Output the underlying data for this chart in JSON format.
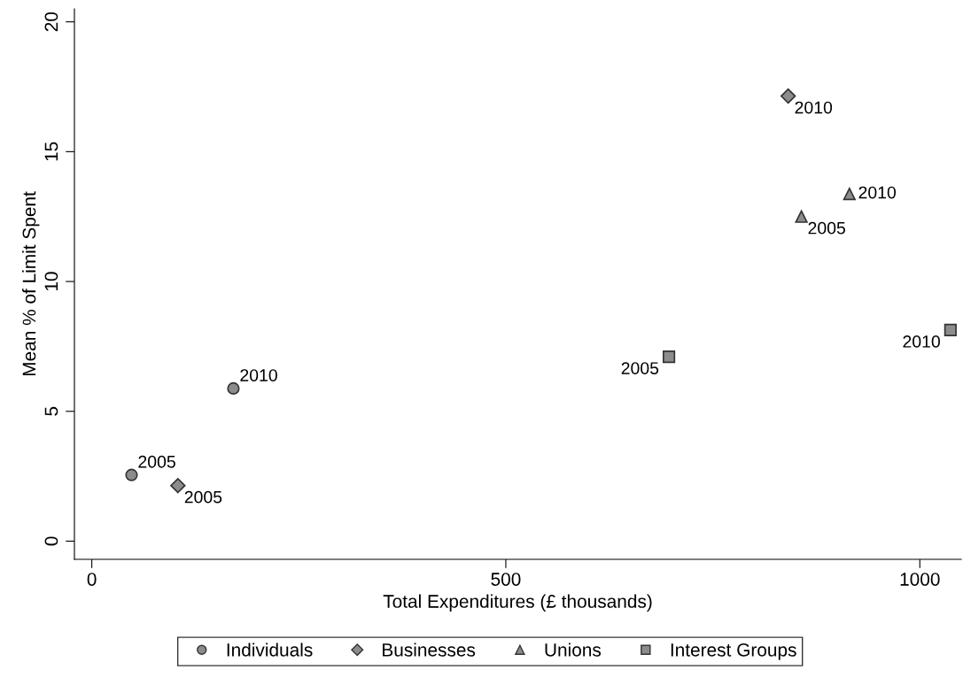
{
  "chart_data": {
    "type": "scatter",
    "xlabel": "Total Expenditures (£ thousands)",
    "ylabel": "Mean % of Limit Spent",
    "xlim": [
      -21,
      1050
    ],
    "ylim": [
      -0.7,
      20.5
    ],
    "xticks": [
      0,
      500,
      1000
    ],
    "yticks": [
      0,
      5,
      10,
      15,
      20
    ],
    "grid": false,
    "legend": "bottom",
    "series": [
      {
        "name": "Individuals",
        "color": "#8c8c8c",
        "marker": "circle",
        "x": [
          48,
          171
        ],
        "values": [
          2.55,
          5.88
        ]
      },
      {
        "name": "Businesses",
        "color": "#8c8c8c",
        "marker": "diamond",
        "x": [
          104,
          841
        ],
        "values": [
          2.14,
          17.14
        ]
      },
      {
        "name": "Unions",
        "color": "#8c8c8c",
        "marker": "triangle",
        "x": [
          857,
          915
        ],
        "values": [
          12.5,
          13.37
        ]
      },
      {
        "name": "Interest Groups",
        "color": "#8c8c8c",
        "marker": "square",
        "x": [
          697,
          1037
        ],
        "values": [
          7.1,
          8.13
        ]
      }
    ],
    "annotations": [
      {
        "text": "2005",
        "x": 48,
        "y": 2.55
      },
      {
        "text": "2010",
        "x": 171,
        "y": 5.88
      },
      {
        "text": "2005",
        "x": 104,
        "y": 2.14
      },
      {
        "text": "2010",
        "x": 841,
        "y": 17.14
      },
      {
        "text": "2005",
        "x": 857,
        "y": 12.5
      },
      {
        "text": "2010",
        "x": 915,
        "y": 13.37
      },
      {
        "text": "2005",
        "x": 697,
        "y": 7.1
      },
      {
        "text": "2010",
        "x": 1037,
        "y": 8.13
      }
    ]
  }
}
